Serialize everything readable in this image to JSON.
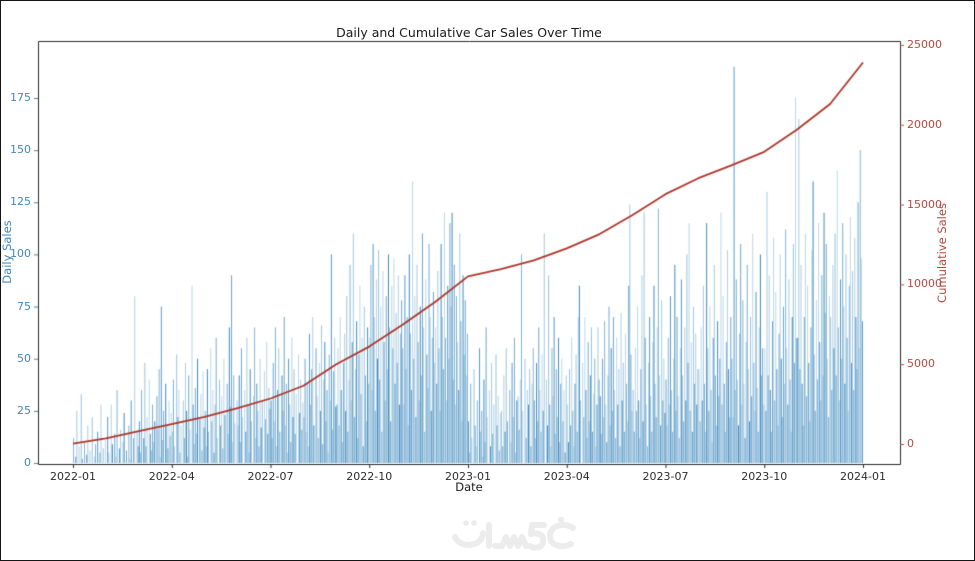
{
  "figure": {
    "background": "#ffffff",
    "border_color": "#151515"
  },
  "watermark": {
    "text": "خمسات"
  },
  "colors": {
    "bar_blue": "#1f77b4",
    "axis_blue_text": "#4287bd",
    "line_red": "#ae362b",
    "axis_red_text": "#b44a3f",
    "spine": "#2a2a2a",
    "title_text": "#1a1a1a",
    "watermark_gray": "#ececec"
  },
  "chart_data": {
    "type": "bar",
    "title": "Daily and Cumulative Car Sales Over Time",
    "xlabel": "Date",
    "ylabel_left": "Daily Sales",
    "ylabel_right": "Cumulative Sales",
    "ylim_left": [
      0,
      200
    ],
    "ylim_right": [
      0,
      25000
    ],
    "grid": false,
    "legend": "none",
    "x_ticks": {
      "labels": [
        "2022-01",
        "2022-04",
        "2022-07",
        "2022-10",
        "2023-01",
        "2023-04",
        "2023-07",
        "2023-10",
        "2024-01"
      ],
      "month_offsets": [
        0,
        3,
        6,
        9,
        12,
        15,
        18,
        21,
        24
      ]
    },
    "y_ticks_left": [
      0,
      25,
      50,
      75,
      100,
      125,
      150,
      175
    ],
    "y_ticks_right": [
      0,
      5000,
      10000,
      15000,
      20000,
      25000
    ],
    "series": [
      {
        "name": "Daily Sales",
        "type": "bar",
        "axis": "left",
        "note": "values estimated from pixels; one value per day",
        "values_by_month": {
          "2022-01": [
            12,
            0,
            3,
            25,
            0,
            8,
            0,
            33,
            2,
            0,
            10,
            0,
            4,
            18,
            0,
            6,
            0,
            22,
            0,
            3,
            9,
            0,
            15,
            0,
            5,
            28,
            0,
            7,
            0,
            11
          ],
          "2022-02": [
            0,
            22,
            5,
            0,
            28,
            9,
            0,
            14,
            3,
            35,
            0,
            7,
            16,
            0,
            10,
            24,
            0,
            6,
            0,
            18,
            2,
            30,
            0,
            12,
            80,
            0,
            15,
            8
          ],
          "2022-03": [
            20,
            5,
            35,
            0,
            12,
            48,
            8,
            22,
            0,
            40,
            14,
            6,
            28,
            10,
            20,
            0,
            32,
            16,
            45,
            3,
            75,
            11,
            25,
            0,
            38,
            18,
            7,
            30,
            13,
            24
          ],
          "2022-04": [
            15,
            40,
            8,
            0,
            52,
            22,
            35,
            5,
            18,
            0,
            30,
            12,
            48,
            25,
            3,
            42,
            16,
            0,
            85,
            28,
            9,
            36,
            14,
            50,
            0,
            21,
            33,
            6,
            44,
            17
          ],
          "2022-05": [
            25,
            8,
            45,
            15,
            0,
            55,
            20,
            35,
            5,
            28,
            60,
            12,
            0,
            40,
            18,
            32,
            7,
            50,
            23,
            0,
            38,
            14,
            65,
            27,
            90,
            10,
            42,
            19,
            0,
            30
          ],
          "2022-06": [
            18,
            42,
            10,
            55,
            22,
            0,
            35,
            15,
            60,
            28,
            5,
            45,
            20,
            0,
            32,
            65,
            12,
            38,
            25,
            8,
            50,
            17,
            30,
            0,
            44,
            21,
            58,
            14,
            36,
            26
          ],
          "2022-07": [
            30,
            12,
            48,
            20,
            65,
            8,
            35,
            55,
            15,
            0,
            42,
            25,
            70,
            18,
            38,
            5,
            50,
            28,
            10,
            60,
            22,
            45,
            14,
            33,
            0,
            52,
            24,
            40,
            16,
            29
          ],
          "2022-08": [
            22,
            50,
            15,
            38,
            8,
            62,
            28,
            45,
            70,
            18,
            0,
            55,
            32,
            12,
            48,
            25,
            66,
            9,
            40,
            58,
            20,
            35,
            5,
            52,
            30,
            100,
            16,
            44,
            60,
            27
          ],
          "2022-09": [
            28,
            55,
            18,
            70,
            35,
            10,
            48,
            62,
            25,
            80,
            15,
            40,
            95,
            30,
            58,
            110,
            22,
            45,
            68,
            12,
            52,
            85,
            33,
            60,
            8,
            75,
            42,
            20,
            65,
            38
          ],
          "2022-10": [
            60,
            95,
            35,
            105,
            70,
            25,
            88,
            50,
            102,
            40,
            75,
            15,
            92,
            58,
            30,
            80,
            45,
            100,
            65,
            20,
            85,
            55,
            98,
            38,
            72,
            48,
            90,
            28,
            62,
            78
          ],
          "2022-11": [
            55,
            28,
            90,
            45,
            70,
            18,
            100,
            62,
            35,
            135,
            50,
            80,
            22,
            95,
            58,
            30,
            75,
            42,
            110,
            65,
            15,
            88,
            52,
            36,
            105,
            70,
            25,
            60,
            82,
            48
          ],
          "2022-12": [
            65,
            38,
            92,
            55,
            25,
            105,
            70,
            45,
            120,
            60,
            30,
            85,
            50,
            115,
            75,
            120,
            40,
            95,
            28,
            80,
            58,
            35,
            110,
            68,
            20,
            90,
            52,
            78,
            42,
            62
          ],
          "2023-01": [
            20,
            5,
            38,
            12,
            0,
            45,
            18,
            8,
            30,
            0,
            55,
            15,
            25,
            3,
            40,
            10,
            65,
            22,
            0,
            35,
            8,
            48,
            14,
            28,
            0,
            52,
            18,
            32,
            6,
            24
          ],
          "2023-02": [
            25,
            8,
            42,
            15,
            55,
            20,
            0,
            35,
            10,
            48,
            22,
            60,
            5,
            30,
            32,
            16,
            40,
            100,
            25,
            0,
            50,
            12,
            35,
            28,
            45,
            8,
            38,
            55
          ],
          "2023-03": [
            30,
            12,
            48,
            20,
            65,
            35,
            15,
            52,
            25,
            110,
            0,
            40,
            18,
            90,
            28,
            8,
            55,
            32,
            70,
            14,
            45,
            22,
            60,
            10,
            38,
            50,
            20,
            35,
            5,
            42
          ],
          "2023-04": [
            28,
            10,
            45,
            18,
            60,
            25,
            8,
            38,
            52,
            15,
            70,
            85,
            30,
            0,
            48,
            22,
            70,
            35,
            12,
            58,
            20,
            42,
            65,
            15,
            33,
            50,
            8,
            28,
            65,
            40
          ],
          "2023-05": [
            32,
            14,
            50,
            22,
            68,
            28,
            10,
            42,
            75,
            18,
            55,
            25,
            70,
            35,
            12,
            60,
            28,
            45,
            8,
            72,
            30,
            48,
            15,
            62,
            38,
            20,
            85,
            124,
            52,
            25
          ],
          "2023-06": [
            35,
            15,
            55,
            25,
            75,
            30,
            12,
            45,
            90,
            20,
            120,
            60,
            28,
            8,
            48,
            70,
            32,
            15,
            58,
            85,
            38,
            22,
            65,
            122,
            42,
            18,
            78,
            30,
            50,
            24
          ],
          "2023-07": [
            40,
            18,
            60,
            28,
            80,
            35,
            15,
            50,
            95,
            25,
            70,
            32,
            12,
            55,
            88,
            42,
            20,
            65,
            30,
            100,
            48,
            115,
            25,
            58,
            15,
            75,
            38,
            62,
            28,
            45
          ],
          "2023-08": [
            45,
            20,
            65,
            30,
            85,
            38,
            15,
            115,
            55,
            25,
            75,
            35,
            10,
            60,
            95,
            42,
            18,
            68,
            32,
            50,
            120,
            28,
            80,
            38,
            15,
            58,
            102,
            45,
            22,
            70
          ],
          "2023-09": [
            50,
            22,
            190,
            35,
            88,
            40,
            18,
            62,
            105,
            28,
            78,
            38,
            12,
            58,
            95,
            45,
            20,
            70,
            32,
            110,
            48,
            25,
            82,
            36,
            15,
            65,
            100,
            42,
            55,
            28
          ],
          "2023-10": [
            55,
            25,
            130,
            42,
            90,
            35,
            15,
            68,
            108,
            30,
            82,
            45,
            18,
            62,
            100,
            50,
            22,
            75,
            38,
            112,
            55,
            28,
            88,
            40,
            15,
            70,
            105,
            48,
            175,
            60
          ],
          "2023-11": [
            60,
            165,
            45,
            95,
            38,
            18,
            70,
            110,
            32,
            85,
            48,
            20,
            65,
            102,
            135,
            52,
            25,
            78,
            40,
            115,
            58,
            30,
            90,
            42,
            120,
            72,
            105,
            50,
            22,
            80
          ],
          "2023-12": [
            70,
            35,
            95,
            55,
            110,
            42,
            140,
            65,
            30,
            88,
            50,
            115,
            75,
            38,
            100,
            60,
            25,
            85,
            118,
            48,
            92,
            35,
            108,
            70,
            45,
            125,
            55,
            150,
            98,
            68
          ]
        }
      },
      {
        "name": "Cumulative Sales",
        "type": "line",
        "axis": "right",
        "x": [
          "2022-01",
          "2022-02",
          "2022-03",
          "2022-04",
          "2022-05",
          "2022-06",
          "2022-07",
          "2022-08",
          "2022-09",
          "2022-10",
          "2022-11",
          "2022-12",
          "2023-01",
          "2023-02",
          "2023-03",
          "2023-04",
          "2023-05",
          "2023-06",
          "2023-07",
          "2023-08",
          "2023-09",
          "2023-10",
          "2023-11",
          "2023-12",
          "2024-01"
        ],
        "values": [
          30,
          350,
          800,
          1250,
          1700,
          2250,
          2850,
          3650,
          5000,
          6100,
          7450,
          8900,
          10500,
          10950,
          11500,
          12250,
          13150,
          14350,
          15650,
          16650,
          17450,
          18300,
          19700,
          21300,
          23900
        ]
      }
    ]
  }
}
